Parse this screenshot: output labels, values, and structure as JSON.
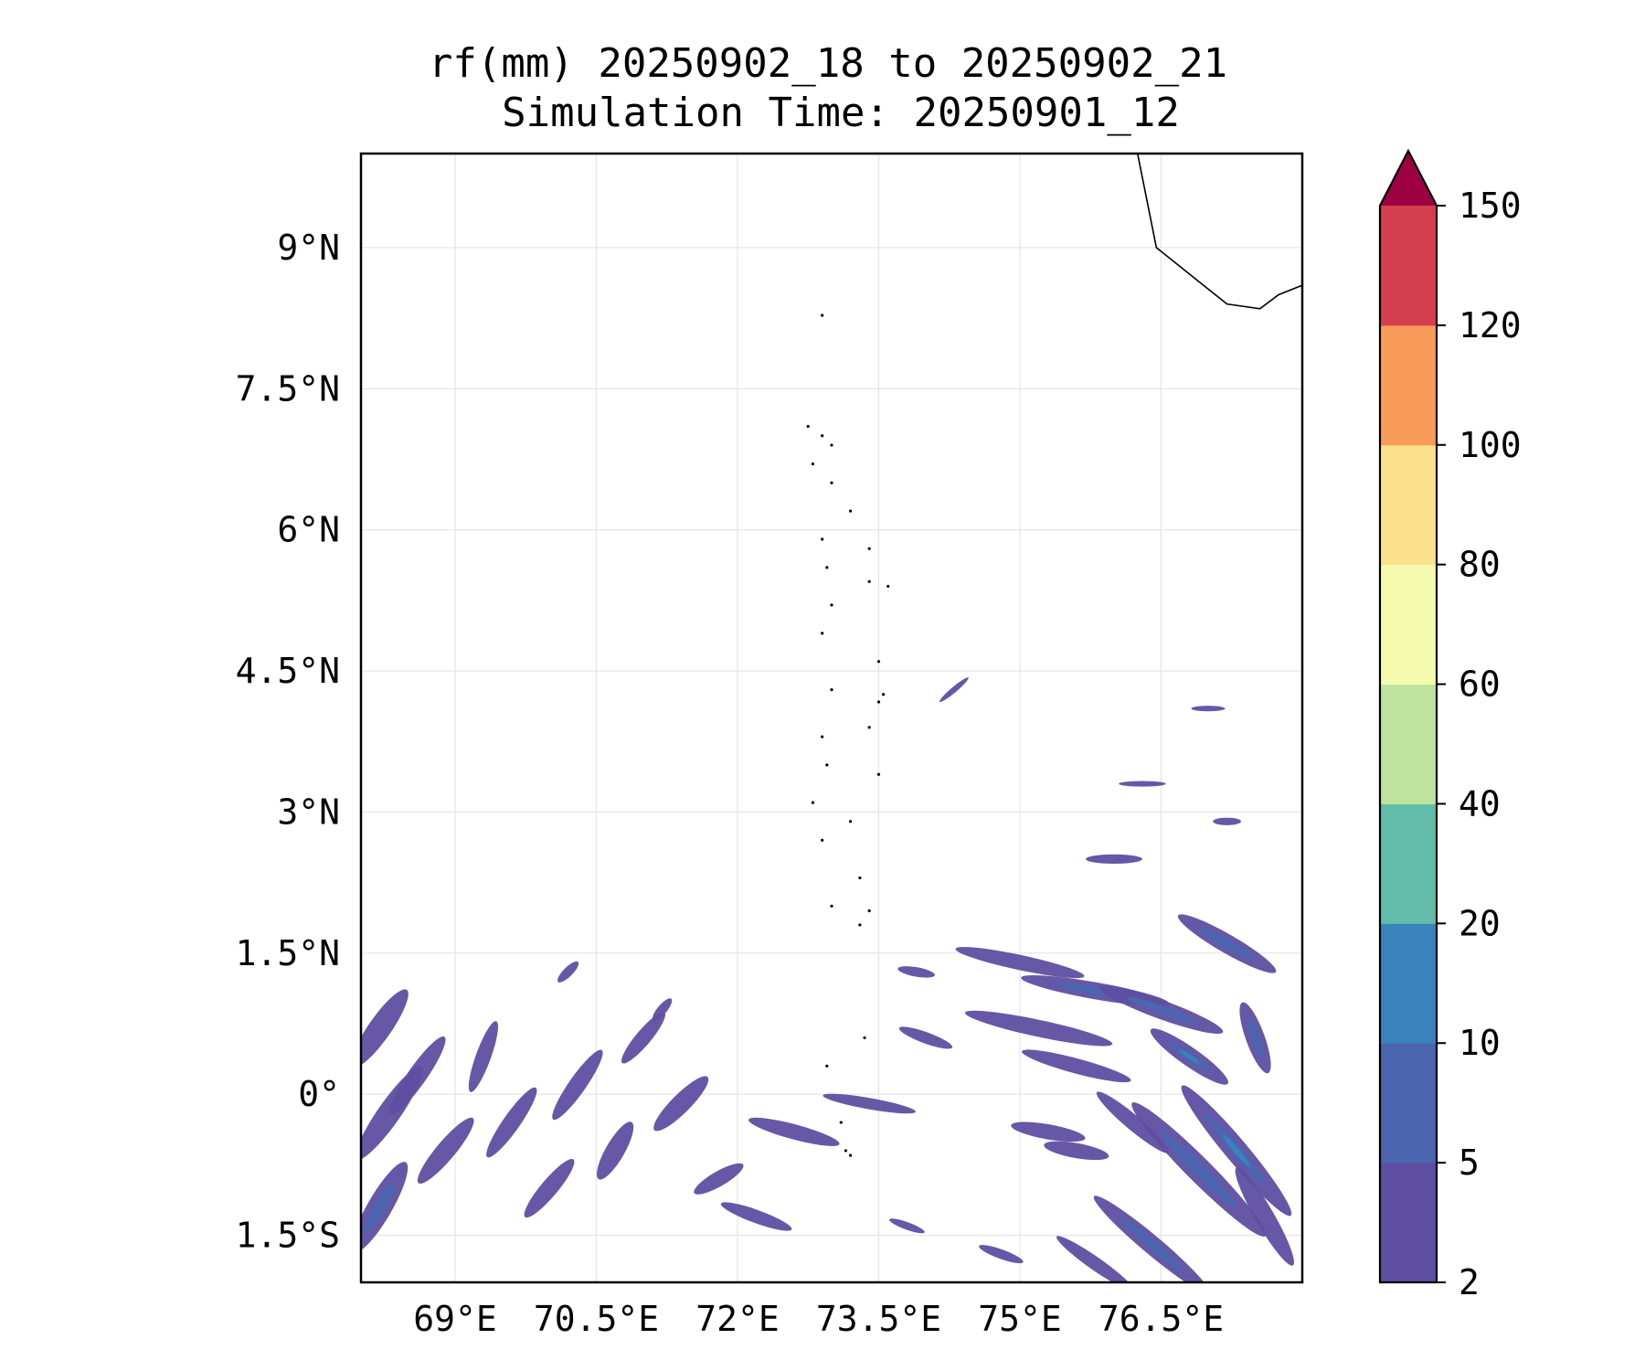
{
  "title": {
    "line1": "rf(mm) 20250902_18 to 20250902_21",
    "line2": "Simulation Time: 20250901_12"
  },
  "map": {
    "lon_range": [
      68.0,
      78.0
    ],
    "lat_range": [
      -2.0,
      10.0
    ],
    "grid": true,
    "lon_ticks": [
      {
        "value": 69.0,
        "label": "69°E"
      },
      {
        "value": 70.5,
        "label": "70.5°E"
      },
      {
        "value": 72.0,
        "label": "72°E"
      },
      {
        "value": 73.5,
        "label": "73.5°E"
      },
      {
        "value": 75.0,
        "label": "75°E"
      },
      {
        "value": 76.5,
        "label": "76.5°E"
      }
    ],
    "lat_ticks": [
      {
        "value": 9.0,
        "label": "9°N"
      },
      {
        "value": 7.5,
        "label": "7.5°N"
      },
      {
        "value": 6.0,
        "label": "6°N"
      },
      {
        "value": 4.5,
        "label": "4.5°N"
      },
      {
        "value": 3.0,
        "label": "3°N"
      },
      {
        "value": 1.5,
        "label": "1.5°N"
      },
      {
        "value": 0.0,
        "label": "0°"
      },
      {
        "value": -1.5,
        "label": "1.5°S"
      }
    ]
  },
  "colorbar": {
    "extend": "max",
    "levels": [
      {
        "value": 2,
        "label": "2"
      },
      {
        "value": 5,
        "label": "5"
      },
      {
        "value": 10,
        "label": "10"
      },
      {
        "value": 20,
        "label": "20"
      },
      {
        "value": 40,
        "label": "40"
      },
      {
        "value": 60,
        "label": "60"
      },
      {
        "value": 80,
        "label": "80"
      },
      {
        "value": 100,
        "label": "100"
      },
      {
        "value": 120,
        "label": "120"
      },
      {
        "value": 150,
        "label": "150"
      }
    ],
    "colors": [
      "#5e4fa2",
      "#4b65b0",
      "#3a82bb",
      "#62bca9",
      "#bde39e",
      "#f4fbaf",
      "#fde08b",
      "#f99b58",
      "#d53e4f"
    ],
    "extend_color": "#9e0142"
  },
  "rain_areas": [
    {
      "lon": 68.2,
      "lat": 0.7,
      "rx": 0.5,
      "ry": 0.12,
      "rot": -55,
      "band": 0
    },
    {
      "lon": 68.3,
      "lat": -0.2,
      "rx": 0.6,
      "ry": 0.12,
      "rot": -55,
      "band": 0
    },
    {
      "lon": 68.2,
      "lat": -1.2,
      "rx": 0.55,
      "ry": 0.13,
      "rot": -60,
      "band": 1
    },
    {
      "lon": 68.6,
      "lat": 0.2,
      "rx": 0.5,
      "ry": 0.1,
      "rot": -55,
      "band": 0
    },
    {
      "lon": 68.9,
      "lat": -0.6,
      "rx": 0.45,
      "ry": 0.1,
      "rot": -50,
      "band": 0
    },
    {
      "lon": 69.3,
      "lat": 0.4,
      "rx": 0.4,
      "ry": 0.08,
      "rot": -70,
      "band": 0
    },
    {
      "lon": 69.6,
      "lat": -0.3,
      "rx": 0.45,
      "ry": 0.09,
      "rot": -55,
      "band": 0
    },
    {
      "lon": 70.0,
      "lat": -1.0,
      "rx": 0.4,
      "ry": 0.09,
      "rot": -50,
      "band": 0
    },
    {
      "lon": 70.3,
      "lat": 0.1,
      "rx": 0.45,
      "ry": 0.09,
      "rot": -55,
      "band": 0
    },
    {
      "lon": 70.7,
      "lat": -0.6,
      "rx": 0.35,
      "ry": 0.1,
      "rot": -60,
      "band": 0
    },
    {
      "lon": 71.0,
      "lat": 0.6,
      "rx": 0.35,
      "ry": 0.08,
      "rot": -50,
      "band": 0
    },
    {
      "lon": 71.4,
      "lat": -0.1,
      "rx": 0.4,
      "ry": 0.1,
      "rot": -45,
      "band": 0
    },
    {
      "lon": 71.8,
      "lat": -0.9,
      "rx": 0.3,
      "ry": 0.08,
      "rot": -30,
      "band": 0
    },
    {
      "lon": 72.6,
      "lat": -0.4,
      "rx": 0.5,
      "ry": 0.08,
      "rot": 15,
      "band": 0
    },
    {
      "lon": 73.4,
      "lat": -0.1,
      "rx": 0.5,
      "ry": 0.06,
      "rot": 10,
      "band": 0
    },
    {
      "lon": 72.2,
      "lat": -1.3,
      "rx": 0.4,
      "ry": 0.07,
      "rot": 20,
      "band": 0
    },
    {
      "lon": 75.0,
      "lat": 1.4,
      "rx": 0.7,
      "ry": 0.08,
      "rot": 12,
      "band": 0
    },
    {
      "lon": 75.8,
      "lat": 1.1,
      "rx": 0.8,
      "ry": 0.09,
      "rot": 10,
      "band": 1
    },
    {
      "lon": 75.2,
      "lat": 0.7,
      "rx": 0.8,
      "ry": 0.09,
      "rot": 12,
      "band": 0
    },
    {
      "lon": 76.5,
      "lat": 0.9,
      "rx": 0.7,
      "ry": 0.1,
      "rot": 20,
      "band": 1
    },
    {
      "lon": 75.6,
      "lat": 0.3,
      "rx": 0.6,
      "ry": 0.08,
      "rot": 15,
      "band": 0
    },
    {
      "lon": 77.2,
      "lat": 1.6,
      "rx": 0.6,
      "ry": 0.1,
      "rot": 30,
      "band": 1
    },
    {
      "lon": 76.8,
      "lat": 0.4,
      "rx": 0.5,
      "ry": 0.1,
      "rot": 35,
      "band": 2
    },
    {
      "lon": 77.5,
      "lat": 0.6,
      "rx": 0.4,
      "ry": 0.1,
      "rot": 70,
      "band": 1
    },
    {
      "lon": 75.3,
      "lat": -0.4,
      "rx": 0.4,
      "ry": 0.08,
      "rot": 10,
      "band": 0
    },
    {
      "lon": 75.6,
      "lat": -0.6,
      "rx": 0.35,
      "ry": 0.08,
      "rot": 10,
      "band": 0
    },
    {
      "lon": 76.2,
      "lat": -0.3,
      "rx": 0.5,
      "ry": 0.08,
      "rot": 40,
      "band": 0
    },
    {
      "lon": 76.9,
      "lat": -0.8,
      "rx": 1.0,
      "ry": 0.13,
      "rot": 45,
      "band": 1
    },
    {
      "lon": 77.3,
      "lat": -0.6,
      "rx": 0.9,
      "ry": 0.12,
      "rot": 50,
      "band": 2
    },
    {
      "lon": 76.4,
      "lat": -1.6,
      "rx": 0.8,
      "ry": 0.1,
      "rot": 40,
      "band": 1
    },
    {
      "lon": 77.6,
      "lat": -1.3,
      "rx": 0.6,
      "ry": 0.1,
      "rot": 60,
      "band": 0
    },
    {
      "lon": 75.8,
      "lat": -1.8,
      "rx": 0.5,
      "ry": 0.07,
      "rot": 35,
      "band": 0
    },
    {
      "lon": 74.0,
      "lat": 0.6,
      "rx": 0.3,
      "ry": 0.06,
      "rot": 20,
      "band": 0
    },
    {
      "lon": 73.9,
      "lat": 1.3,
      "rx": 0.2,
      "ry": 0.05,
      "rot": 10,
      "band": 0
    },
    {
      "lon": 77.2,
      "lat": 2.9,
      "rx": 0.15,
      "ry": 0.04,
      "rot": 0,
      "band": 0
    },
    {
      "lon": 76.3,
      "lat": 3.3,
      "rx": 0.25,
      "ry": 0.03,
      "rot": 0,
      "band": 0
    },
    {
      "lon": 77.0,
      "lat": 4.1,
      "rx": 0.18,
      "ry": 0.03,
      "rot": 0,
      "band": 0
    },
    {
      "lon": 74.3,
      "lat": 4.3,
      "rx": 0.2,
      "ry": 0.03,
      "rot": -40,
      "band": 0
    },
    {
      "lon": 76.0,
      "lat": 2.5,
      "rx": 0.3,
      "ry": 0.05,
      "rot": 0,
      "band": 0
    },
    {
      "lon": 70.2,
      "lat": 1.3,
      "rx": 0.15,
      "ry": 0.05,
      "rot": -45,
      "band": 0
    },
    {
      "lon": 71.2,
      "lat": 0.9,
      "rx": 0.15,
      "ry": 0.05,
      "rot": -50,
      "band": 0
    },
    {
      "lon": 74.8,
      "lat": -1.7,
      "rx": 0.25,
      "ry": 0.05,
      "rot": 20,
      "band": 0
    },
    {
      "lon": 73.8,
      "lat": -1.4,
      "rx": 0.2,
      "ry": 0.04,
      "rot": 20,
      "band": 0
    }
  ],
  "coastline": [
    [
      76.25,
      10.0
    ],
    [
      76.35,
      9.5
    ],
    [
      76.45,
      9.0
    ],
    [
      76.7,
      8.8
    ],
    [
      76.95,
      8.6
    ],
    [
      77.2,
      8.4
    ],
    [
      77.55,
      8.35
    ],
    [
      77.75,
      8.5
    ],
    [
      78.0,
      8.6
    ]
  ],
  "islands": [
    {
      "lon": 72.9,
      "lat": 8.28
    },
    {
      "lon": 72.75,
      "lat": 7.1
    },
    {
      "lon": 72.9,
      "lat": 7.0
    },
    {
      "lon": 73.0,
      "lat": 6.9
    },
    {
      "lon": 72.8,
      "lat": 6.7
    },
    {
      "lon": 73.0,
      "lat": 6.5
    },
    {
      "lon": 73.2,
      "lat": 6.2
    },
    {
      "lon": 72.9,
      "lat": 5.9
    },
    {
      "lon": 73.4,
      "lat": 5.8
    },
    {
      "lon": 72.95,
      "lat": 5.6
    },
    {
      "lon": 73.6,
      "lat": 5.4
    },
    {
      "lon": 73.4,
      "lat": 5.45
    },
    {
      "lon": 73.0,
      "lat": 5.2
    },
    {
      "lon": 72.9,
      "lat": 4.9
    },
    {
      "lon": 73.5,
      "lat": 4.6
    },
    {
      "lon": 73.55,
      "lat": 4.25
    },
    {
      "lon": 73.5,
      "lat": 4.17
    },
    {
      "lon": 73.0,
      "lat": 4.3
    },
    {
      "lon": 72.9,
      "lat": 3.8
    },
    {
      "lon": 73.4,
      "lat": 3.9
    },
    {
      "lon": 72.95,
      "lat": 3.5
    },
    {
      "lon": 73.5,
      "lat": 3.4
    },
    {
      "lon": 72.8,
      "lat": 3.1
    },
    {
      "lon": 73.2,
      "lat": 2.9
    },
    {
      "lon": 72.9,
      "lat": 2.7
    },
    {
      "lon": 73.3,
      "lat": 2.3
    },
    {
      "lon": 73.0,
      "lat": 2.0
    },
    {
      "lon": 73.3,
      "lat": 1.8
    },
    {
      "lon": 73.4,
      "lat": 1.95
    },
    {
      "lon": 73.35,
      "lat": 0.6
    },
    {
      "lon": 73.1,
      "lat": -0.3
    },
    {
      "lon": 73.2,
      "lat": -0.65
    },
    {
      "lon": 73.15,
      "lat": -0.6
    },
    {
      "lon": 72.95,
      "lat": 0.3
    }
  ]
}
